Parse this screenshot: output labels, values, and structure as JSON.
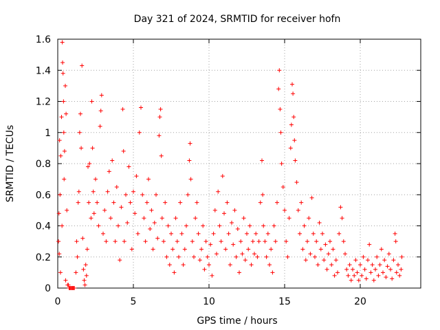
{
  "chart_data": {
    "type": "scatter",
    "title": "Day 321 of 2024, SRMTID for receiver hofn",
    "xlabel": "GPS time / hours",
    "ylabel": "SRMTID / TECUs",
    "xlim": [
      0,
      24
    ],
    "ylim": [
      0,
      1.6
    ],
    "xticks": [
      0,
      5,
      10,
      15,
      20
    ],
    "xtick_labels": [
      "0",
      "5",
      "10",
      "15",
      "20"
    ],
    "yticks": [
      0,
      0.2,
      0.4,
      0.6,
      0.8,
      1,
      1.2,
      1.4,
      1.6
    ],
    "ytick_labels": [
      "0",
      "0.2",
      "0.4",
      "0.6",
      "0.8",
      "1",
      "1.2",
      "1.4",
      "1.6"
    ],
    "grid": true,
    "marker": "+",
    "color": "#ff0000",
    "series": [
      {
        "name": "SRMTID",
        "points": [
          [
            0.05,
            0.3
          ],
          [
            0.08,
            0.48
          ],
          [
            0.1,
            0.22
          ],
          [
            0.12,
            0.95
          ],
          [
            0.15,
            0.6
          ],
          [
            0.18,
            0.1
          ],
          [
            0.2,
            0.85
          ],
          [
            0.25,
            1.1
          ],
          [
            0.28,
            0.4
          ],
          [
            0.3,
            1.58
          ],
          [
            0.32,
            1.45
          ],
          [
            0.35,
            1.38
          ],
          [
            0.38,
            1.2
          ],
          [
            0.4,
            1.0
          ],
          [
            0.42,
            0.7
          ],
          [
            0.45,
            0.88
          ],
          [
            0.5,
            1.3
          ],
          [
            0.52,
            0.05
          ],
          [
            0.55,
            1.12
          ],
          [
            0.6,
            0.5
          ],
          [
            0.65,
            0.02
          ],
          [
            0.7,
            0.02
          ],
          [
            0.75,
            0.0
          ],
          [
            0.8,
            0.0
          ],
          [
            0.85,
            0.0
          ],
          [
            0.9,
            0.0
          ],
          [
            0.95,
            0.0
          ],
          [
            1.0,
            0.0
          ],
          [
            1.05,
            0.0
          ],
          [
            1.1,
            0.0
          ],
          [
            1.2,
            0.1
          ],
          [
            1.25,
            0.3
          ],
          [
            1.3,
            0.2
          ],
          [
            1.35,
            0.55
          ],
          [
            1.4,
            0.62
          ],
          [
            1.45,
            1.0
          ],
          [
            1.5,
            1.12
          ],
          [
            1.55,
            0.9
          ],
          [
            1.6,
            1.43
          ],
          [
            1.65,
            0.32
          ],
          [
            1.7,
            0.12
          ],
          [
            1.75,
            0.05
          ],
          [
            1.8,
            0.02
          ],
          [
            1.85,
            0.15
          ],
          [
            1.9,
            0.08
          ],
          [
            1.95,
            0.25
          ],
          [
            2.0,
            0.78
          ],
          [
            2.05,
            0.55
          ],
          [
            2.1,
            0.8
          ],
          [
            2.2,
            0.45
          ],
          [
            2.25,
            1.2
          ],
          [
            2.3,
            0.9
          ],
          [
            2.35,
            0.62
          ],
          [
            2.4,
            0.48
          ],
          [
            2.5,
            0.7
          ],
          [
            2.6,
            0.55
          ],
          [
            2.7,
            0.4
          ],
          [
            2.8,
            1.04
          ],
          [
            2.85,
            1.14
          ],
          [
            2.9,
            1.24
          ],
          [
            3.0,
            0.35
          ],
          [
            3.1,
            0.5
          ],
          [
            3.2,
            0.3
          ],
          [
            3.3,
            0.62
          ],
          [
            3.4,
            0.75
          ],
          [
            3.5,
            0.45
          ],
          [
            3.6,
            0.82
          ],
          [
            3.7,
            0.55
          ],
          [
            3.8,
            0.3
          ],
          [
            3.9,
            0.65
          ],
          [
            4.0,
            0.4
          ],
          [
            4.1,
            0.18
          ],
          [
            4.2,
            0.52
          ],
          [
            4.3,
            1.15
          ],
          [
            4.35,
            0.88
          ],
          [
            4.4,
            0.3
          ],
          [
            4.5,
            0.6
          ],
          [
            4.6,
            0.42
          ],
          [
            4.7,
            0.78
          ],
          [
            4.8,
            0.55
          ],
          [
            4.9,
            0.25
          ],
          [
            5.0,
            0.62
          ],
          [
            5.1,
            0.48
          ],
          [
            5.2,
            0.72
          ],
          [
            5.3,
            0.35
          ],
          [
            5.4,
            1.0
          ],
          [
            5.5,
            1.16
          ],
          [
            5.6,
            0.6
          ],
          [
            5.7,
            0.45
          ],
          [
            5.8,
            0.3
          ],
          [
            5.9,
            0.55
          ],
          [
            6.0,
            0.7
          ],
          [
            6.1,
            0.38
          ],
          [
            6.2,
            0.5
          ],
          [
            6.3,
            0.25
          ],
          [
            6.4,
            0.42
          ],
          [
            6.5,
            0.6
          ],
          [
            6.6,
            0.32
          ],
          [
            6.7,
            0.98
          ],
          [
            6.75,
            1.1
          ],
          [
            6.8,
            1.15
          ],
          [
            6.85,
            0.85
          ],
          [
            6.9,
            0.45
          ],
          [
            7.0,
            0.3
          ],
          [
            7.1,
            0.55
          ],
          [
            7.2,
            0.2
          ],
          [
            7.3,
            0.4
          ],
          [
            7.4,
            0.15
          ],
          [
            7.5,
            0.35
          ],
          [
            7.6,
            0.25
          ],
          [
            7.7,
            0.1
          ],
          [
            7.8,
            0.45
          ],
          [
            7.9,
            0.3
          ],
          [
            8.0,
            0.2
          ],
          [
            8.1,
            0.55
          ],
          [
            8.2,
            0.35
          ],
          [
            8.3,
            0.15
          ],
          [
            8.4,
            0.25
          ],
          [
            8.5,
            0.4
          ],
          [
            8.6,
            0.6
          ],
          [
            8.7,
            0.82
          ],
          [
            8.75,
            0.93
          ],
          [
            8.8,
            0.7
          ],
          [
            8.9,
            0.3
          ],
          [
            9.0,
            0.2
          ],
          [
            9.1,
            0.45
          ],
          [
            9.2,
            0.55
          ],
          [
            9.3,
            0.35
          ],
          [
            9.4,
            0.18
          ],
          [
            9.5,
            0.25
          ],
          [
            9.6,
            0.4
          ],
          [
            9.7,
            0.12
          ],
          [
            9.8,
            0.3
          ],
          [
            9.9,
            0.2
          ],
          [
            10.0,
            0.15
          ],
          [
            10.1,
            0.28
          ],
          [
            10.2,
            0.08
          ],
          [
            10.3,
            0.35
          ],
          [
            10.4,
            0.5
          ],
          [
            10.5,
            0.22
          ],
          [
            10.6,
            0.62
          ],
          [
            10.7,
            0.4
          ],
          [
            10.8,
            0.3
          ],
          [
            10.9,
            0.72
          ],
          [
            11.0,
            0.48
          ],
          [
            11.1,
            0.25
          ],
          [
            11.2,
            0.55
          ],
          [
            11.3,
            0.35
          ],
          [
            11.4,
            0.15
          ],
          [
            11.5,
            0.42
          ],
          [
            11.6,
            0.28
          ],
          [
            11.7,
            0.5
          ],
          [
            11.8,
            0.2
          ],
          [
            11.9,
            0.38
          ],
          [
            12.0,
            0.1
          ],
          [
            12.1,
            0.3
          ],
          [
            12.2,
            0.22
          ],
          [
            12.3,
            0.45
          ],
          [
            12.4,
            0.18
          ],
          [
            12.5,
            0.35
          ],
          [
            12.6,
            0.25
          ],
          [
            12.7,
            0.4
          ],
          [
            12.8,
            0.15
          ],
          [
            12.9,
            0.3
          ],
          [
            13.0,
            0.22
          ],
          [
            13.1,
            0.35
          ],
          [
            13.2,
            0.2
          ],
          [
            13.3,
            0.3
          ],
          [
            13.4,
            0.55
          ],
          [
            13.5,
            0.82
          ],
          [
            13.55,
            0.6
          ],
          [
            13.6,
            0.4
          ],
          [
            13.7,
            0.3
          ],
          [
            13.8,
            0.2
          ],
          [
            13.9,
            0.35
          ],
          [
            14.0,
            0.15
          ],
          [
            14.1,
            0.25
          ],
          [
            14.2,
            0.1
          ],
          [
            14.3,
            0.4
          ],
          [
            14.4,
            0.3
          ],
          [
            14.5,
            0.55
          ],
          [
            14.6,
            1.28
          ],
          [
            14.65,
            1.4
          ],
          [
            14.7,
            1.15
          ],
          [
            14.75,
            1.0
          ],
          [
            14.8,
            0.8
          ],
          [
            14.9,
            0.65
          ],
          [
            15.0,
            0.5
          ],
          [
            15.1,
            0.3
          ],
          [
            15.2,
            0.2
          ],
          [
            15.3,
            0.45
          ],
          [
            15.4,
            0.9
          ],
          [
            15.45,
            1.05
          ],
          [
            15.5,
            1.31
          ],
          [
            15.55,
            1.25
          ],
          [
            15.6,
            1.1
          ],
          [
            15.65,
            0.95
          ],
          [
            15.7,
            0.82
          ],
          [
            15.8,
            0.68
          ],
          [
            15.9,
            0.5
          ],
          [
            16.0,
            0.35
          ],
          [
            16.1,
            0.55
          ],
          [
            16.2,
            0.25
          ],
          [
            16.3,
            0.4
          ],
          [
            16.4,
            0.18
          ],
          [
            16.5,
            0.3
          ],
          [
            16.6,
            0.45
          ],
          [
            16.7,
            0.22
          ],
          [
            16.8,
            0.58
          ],
          [
            16.9,
            0.35
          ],
          [
            17.0,
            0.2
          ],
          [
            17.1,
            0.3
          ],
          [
            17.2,
            0.15
          ],
          [
            17.3,
            0.42
          ],
          [
            17.4,
            0.25
          ],
          [
            17.5,
            0.35
          ],
          [
            17.6,
            0.18
          ],
          [
            17.7,
            0.28
          ],
          [
            17.8,
            0.12
          ],
          [
            17.9,
            0.22
          ],
          [
            18.0,
            0.3
          ],
          [
            18.1,
            0.15
          ],
          [
            18.2,
            0.25
          ],
          [
            18.3,
            0.08
          ],
          [
            18.4,
            0.18
          ],
          [
            18.5,
            0.1
          ],
          [
            18.6,
            0.35
          ],
          [
            18.7,
            0.52
          ],
          [
            18.8,
            0.45
          ],
          [
            18.9,
            0.3
          ],
          [
            19.0,
            0.22
          ],
          [
            19.1,
            0.12
          ],
          [
            19.2,
            0.08
          ],
          [
            19.3,
            0.15
          ],
          [
            19.4,
            0.05
          ],
          [
            19.5,
            0.12
          ],
          [
            19.6,
            0.08
          ],
          [
            19.7,
            0.18
          ],
          [
            19.8,
            0.1
          ],
          [
            19.9,
            0.05
          ],
          [
            20.0,
            0.15
          ],
          [
            20.1,
            0.08
          ],
          [
            20.2,
            0.2
          ],
          [
            20.3,
            0.12
          ],
          [
            20.4,
            0.06
          ],
          [
            20.5,
            0.18
          ],
          [
            20.6,
            0.28
          ],
          [
            20.7,
            0.1
          ],
          [
            20.8,
            0.15
          ],
          [
            20.9,
            0.05
          ],
          [
            21.0,
            0.12
          ],
          [
            21.1,
            0.2
          ],
          [
            21.2,
            0.08
          ],
          [
            21.3,
            0.15
          ],
          [
            21.4,
            0.25
          ],
          [
            21.5,
            0.1
          ],
          [
            21.6,
            0.18
          ],
          [
            21.7,
            0.07
          ],
          [
            21.8,
            0.14
          ],
          [
            21.9,
            0.22
          ],
          [
            22.0,
            0.12
          ],
          [
            22.1,
            0.06
          ],
          [
            22.2,
            0.18
          ],
          [
            22.3,
            0.35
          ],
          [
            22.35,
            0.3
          ],
          [
            22.4,
            0.1
          ],
          [
            22.5,
            0.15
          ],
          [
            22.6,
            0.08
          ],
          [
            22.7,
            0.12
          ],
          [
            22.75,
            0.2
          ]
        ]
      }
    ]
  }
}
